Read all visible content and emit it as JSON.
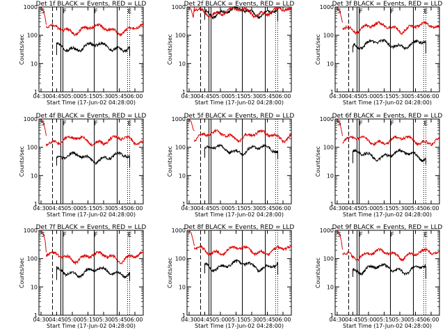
{
  "colors": {
    "events": "#000000",
    "lld": "#e00000",
    "background": "#ffffff"
  },
  "x_tick_labels": [
    "04:30",
    "04:45",
    "05:00",
    "05:15",
    "05:30",
    "05:45",
    "06:00"
  ],
  "y_tick_labels": [
    "1",
    "10",
    "100",
    "1000"
  ],
  "chart_data": [
    {
      "type": "line",
      "title": "Det  1f BLACK = Events, RED = LLD",
      "xlabel": "Start Time (17-Jun-02 04:28:00)",
      "ylabel": "Counts/sec",
      "xlim_min": [
        0,
        100
      ],
      "ylim": [
        1,
        1000
      ],
      "markers": [
        {
          "label": "S",
          "t": 2
        },
        {
          "label": "F",
          "t": 23
        },
        {
          "label": "F",
          "t": 53
        },
        {
          "label": "E",
          "t": 85
        }
      ],
      "series": [
        {
          "name": "Events",
          "color": "#000000",
          "start_min": 17,
          "end_min": 87,
          "level": 40
        },
        {
          "name": "LLD",
          "color": "#e00000",
          "start_min": 7,
          "end_min": 100,
          "level": 170
        }
      ]
    },
    {
      "type": "line",
      "title": "Det  2f BLACK = Events, RED = LLD",
      "xlabel": "Start Time (17-Jun-02 04:28:00)",
      "ylabel": "Counts/sec",
      "xlim_min": [
        0,
        100
      ],
      "ylim": [
        1,
        1000
      ],
      "markers": [],
      "series": [
        {
          "name": "Events",
          "color": "#000000",
          "start_min": 17,
          "end_min": 87,
          "level": 700
        },
        {
          "name": "LLD",
          "color": "#e00000",
          "start_min": 7,
          "end_min": 100,
          "level": 700
        }
      ]
    },
    {
      "type": "line",
      "title": "Det  3f BLACK = Events, RED = LLD",
      "xlabel": "Start Time (17-Jun-02 04:28:00)",
      "ylabel": "Counts/sec",
      "xlim_min": [
        0,
        100
      ],
      "ylim": [
        1,
        1000
      ],
      "markers": [
        {
          "label": "S",
          "t": 2
        },
        {
          "label": "F",
          "t": 23
        },
        {
          "label": "F",
          "t": 53
        },
        {
          "label": "E",
          "t": 85
        }
      ],
      "series": [
        {
          "name": "Events",
          "color": "#000000",
          "start_min": 17,
          "end_min": 87,
          "level": 50
        },
        {
          "name": "LLD",
          "color": "#e00000",
          "start_min": 7,
          "end_min": 100,
          "level": 200
        }
      ]
    },
    {
      "type": "line",
      "title": "Det  4f BLACK = Events, RED = LLD",
      "xlabel": "Start Time (17-Jun-02 04:28:00)",
      "ylabel": "Counts/sec",
      "xlim_min": [
        0,
        100
      ],
      "ylim": [
        1,
        1000
      ],
      "markers": [
        {
          "label": "S",
          "t": 2
        },
        {
          "label": "F",
          "t": 23
        },
        {
          "label": "F",
          "t": 53
        },
        {
          "label": "E",
          "t": 85
        }
      ],
      "series": [
        {
          "name": "Events",
          "color": "#000000",
          "start_min": 17,
          "end_min": 87,
          "level": 45
        },
        {
          "name": "LLD",
          "color": "#e00000",
          "start_min": 7,
          "end_min": 100,
          "level": 180
        }
      ]
    },
    {
      "type": "line",
      "title": "Det  5f BLACK = Events, RED = LLD",
      "xlabel": "Start Time (17-Jun-02 04:28:00)",
      "ylabel": "Counts/sec",
      "xlim_min": [
        0,
        100
      ],
      "ylim": [
        1,
        1000
      ],
      "markers": [],
      "series": [
        {
          "name": "Events",
          "color": "#000000",
          "start_min": 17,
          "end_min": 87,
          "level": 85
        },
        {
          "name": "LLD",
          "color": "#e00000",
          "start_min": 7,
          "end_min": 100,
          "level": 270
        }
      ]
    },
    {
      "type": "line",
      "title": "Det  6f BLACK = Events, RED = LLD",
      "xlabel": "Start Time (17-Jun-02 04:28:00)",
      "ylabel": "Counts/sec",
      "xlim_min": [
        0,
        100
      ],
      "ylim": [
        1,
        1000
      ],
      "markers": [
        {
          "label": "S",
          "t": 2
        },
        {
          "label": "F",
          "t": 23
        },
        {
          "label": "F",
          "t": 53
        },
        {
          "label": "E",
          "t": 85
        }
      ],
      "series": [
        {
          "name": "Events",
          "color": "#000000",
          "start_min": 17,
          "end_min": 87,
          "level": 55
        },
        {
          "name": "LLD",
          "color": "#e00000",
          "start_min": 7,
          "end_min": 100,
          "level": 180
        }
      ]
    },
    {
      "type": "line",
      "title": "Det  7f BLACK = Events, RED = LLD",
      "xlabel": "Start Time (17-Jun-02 04:28:00)",
      "ylabel": "Counts/sec",
      "xlim_min": [
        0,
        100
      ],
      "ylim": [
        1,
        1000
      ],
      "markers": [
        {
          "label": "S",
          "t": 2
        },
        {
          "label": "F",
          "t": 23
        },
        {
          "label": "F",
          "t": 53
        },
        {
          "label": "E",
          "t": 85
        }
      ],
      "series": [
        {
          "name": "Events",
          "color": "#000000",
          "start_min": 17,
          "end_min": 87,
          "level": 35
        },
        {
          "name": "LLD",
          "color": "#e00000",
          "start_min": 7,
          "end_min": 100,
          "level": 120
        }
      ]
    },
    {
      "type": "line",
      "title": "Det  8f BLACK = Events, RED = LLD",
      "xlabel": "Start Time (17-Jun-02 04:28:00)",
      "ylabel": "Counts/sec",
      "xlim_min": [
        0,
        100
      ],
      "ylim": [
        1,
        1000
      ],
      "markers": [],
      "series": [
        {
          "name": "Events",
          "color": "#000000",
          "start_min": 17,
          "end_min": 87,
          "level": 60
        },
        {
          "name": "LLD",
          "color": "#e00000",
          "start_min": 7,
          "end_min": 100,
          "level": 200
        }
      ]
    },
    {
      "type": "line",
      "title": "Det  9f BLACK = Events, RED = LLD",
      "xlabel": "Start Time (17-Jun-02 04:28:00)",
      "ylabel": "Counts/sec",
      "xlim_min": [
        0,
        100
      ],
      "ylim": [
        1,
        1000
      ],
      "markers": [
        {
          "label": "S",
          "t": 2
        },
        {
          "label": "F",
          "t": 23
        },
        {
          "label": "F",
          "t": 53
        },
        {
          "label": "E",
          "t": 85
        }
      ],
      "series": [
        {
          "name": "Events",
          "color": "#000000",
          "start_min": 17,
          "end_min": 87,
          "level": 45
        },
        {
          "name": "LLD",
          "color": "#e00000",
          "start_min": 7,
          "end_min": 100,
          "level": 150
        }
      ]
    }
  ]
}
